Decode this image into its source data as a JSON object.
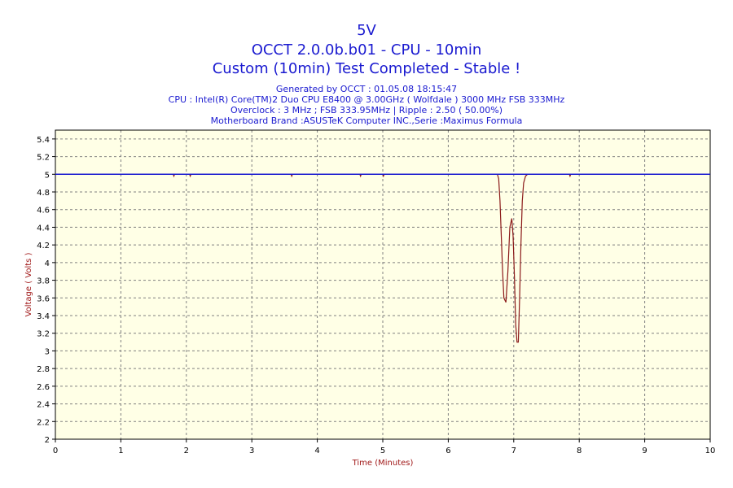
{
  "header": {
    "title": "5V",
    "line2": "OCCT 2.0.0b.b01 - CPU - 10min",
    "line3": "Custom (10min) Test Completed - Stable !",
    "info1": "Generated by OCCT : 01.05.08 18:15:47",
    "info2": "CPU : Intel(R) Core(TM)2 Duo CPU E8400 @ 3.00GHz ( Wolfdale ) 3000 MHz FSB 333MHz",
    "info3": "Overclock : 3 MHz ; FSB 333.95MHz | Ripple : 2.50 ( 50.00%)",
    "info4": "Motherboard Brand :ASUSTeK Computer INC.,Serie :Maximus Formula"
  },
  "chart_data": {
    "type": "line",
    "xlabel": "Time (Minutes)",
    "ylabel": "Voltage ( Volts )",
    "xlim": [
      0,
      10
    ],
    "ylim": [
      2,
      5.5
    ],
    "xticks": [
      "0",
      "1",
      "2",
      "3",
      "4",
      "5",
      "6",
      "7",
      "8",
      "9",
      "10"
    ],
    "yticks": [
      "2",
      "2.2",
      "2.4",
      "2.6",
      "2.8",
      "3",
      "3.2",
      "3.4",
      "3.6",
      "3.8",
      "4",
      "4.2",
      "4.4",
      "4.6",
      "4.8",
      "5",
      "5.2",
      "5.4"
    ],
    "grid": true,
    "colors": {
      "plot_bg": "#ffffe6",
      "grid": "#808080",
      "min_line": "#8b1a1a",
      "max_line": "#1a1ad0",
      "label": "#a01818",
      "title": "#1a1ad0"
    },
    "series": [
      {
        "role": "min",
        "x": [
          0,
          1.8,
          1.81,
          1.82,
          2.05,
          2.06,
          2.07,
          3.6,
          3.61,
          3.62,
          4.65,
          4.66,
          4.67,
          5.0,
          5.01,
          5.02,
          6.75,
          6.77,
          6.79,
          6.81,
          6.83,
          6.85,
          6.88,
          6.91,
          6.94,
          6.97,
          6.99,
          7.01,
          7.03,
          7.05,
          7.07,
          7.09,
          7.11,
          7.13,
          7.15,
          7.18,
          7.21,
          7.25,
          7.85,
          7.86,
          7.87,
          10
        ],
        "y": [
          5.0,
          5.0,
          4.98,
          5.0,
          5.0,
          4.98,
          5.0,
          5.0,
          4.98,
          5.0,
          5.0,
          4.98,
          5.0,
          5.0,
          4.98,
          5.0,
          5.0,
          4.95,
          4.7,
          4.3,
          3.9,
          3.6,
          3.55,
          3.9,
          4.4,
          4.5,
          4.3,
          3.85,
          3.3,
          3.1,
          3.1,
          3.6,
          4.2,
          4.7,
          4.9,
          4.98,
          5.0,
          5.0,
          5.0,
          4.98,
          5.0,
          5.0
        ]
      },
      {
        "role": "max",
        "x": [
          0,
          10
        ],
        "y": [
          5.0,
          5.0
        ]
      }
    ]
  }
}
